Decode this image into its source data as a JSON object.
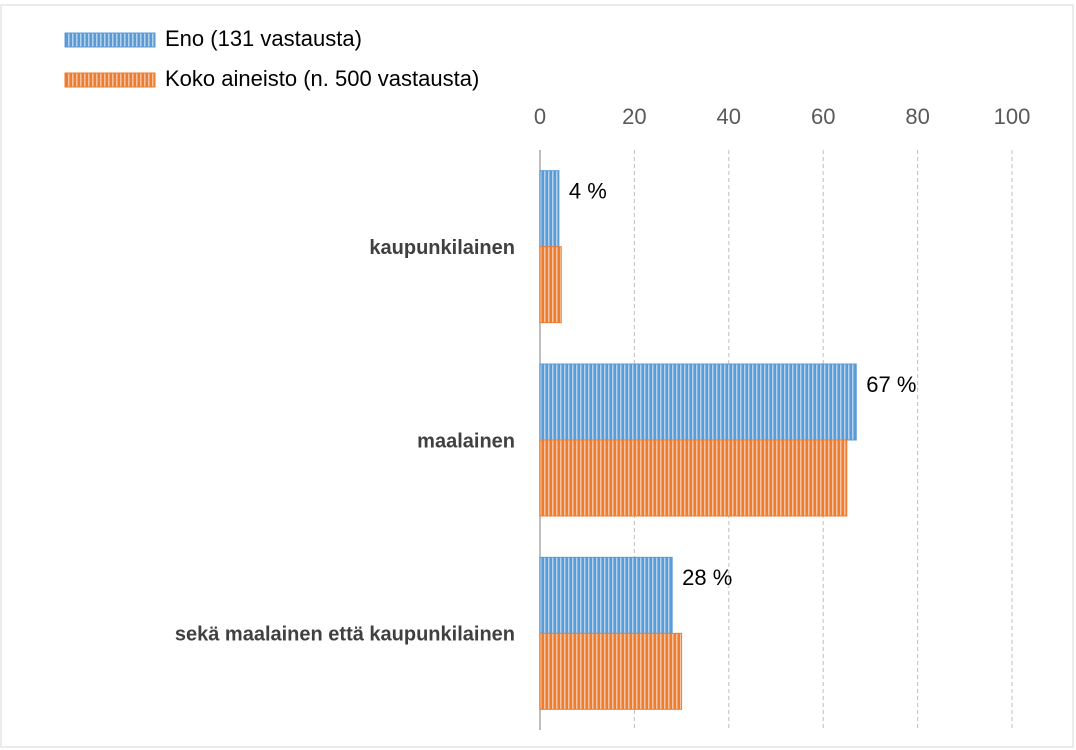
{
  "chart_data": {
    "type": "hbar",
    "categories": [
      "kaupunkilainen",
      "maalainen",
      "sekä maalainen että kaupunkilainen"
    ],
    "series": [
      {
        "name": "Eno (131 vastausta)",
        "color": "#5b9bd5",
        "values": [
          4,
          67,
          28
        ],
        "value_labels": [
          "4 %",
          "67 %",
          "28 %"
        ]
      },
      {
        "name": "Koko aineisto (n. 500 vastausta)",
        "color": "#ed7d31",
        "values": [
          4.5,
          65,
          30
        ]
      }
    ],
    "xlim": [
      0,
      100
    ],
    "xticks": [
      0,
      20,
      40,
      60,
      80,
      100
    ],
    "grid": true,
    "legend": "top-left"
  }
}
